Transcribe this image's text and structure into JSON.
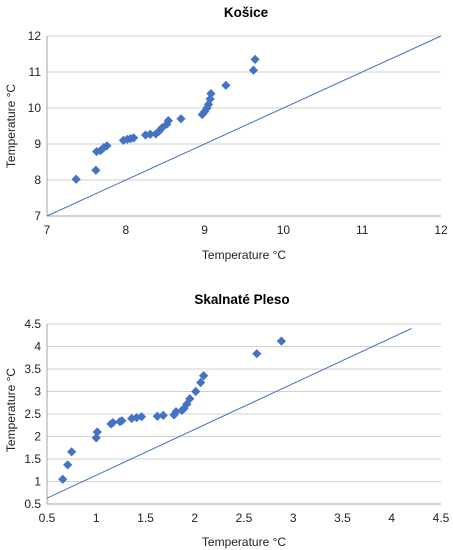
{
  "chart_data": [
    {
      "type": "scatter",
      "title": "Košice",
      "xlabel": "Temperature °C",
      "ylabel": "Temperature °C",
      "xlim": [
        7,
        12
      ],
      "ylim": [
        7,
        12
      ],
      "xticks": [
        "7",
        "8",
        "9",
        "10",
        "11",
        "12"
      ],
      "yticks": [
        "7",
        "8",
        "9",
        "10",
        "11",
        "12"
      ],
      "grid": true,
      "reference_line": {
        "from": [
          7,
          7
        ],
        "to": [
          12,
          12
        ]
      },
      "marker_color": "#4472c4",
      "points": [
        [
          7.37,
          8.02
        ],
        [
          7.62,
          8.27
        ],
        [
          7.63,
          8.79
        ],
        [
          7.68,
          8.82
        ],
        [
          7.72,
          8.9
        ],
        [
          7.76,
          8.95
        ],
        [
          7.97,
          9.1
        ],
        [
          8.02,
          9.13
        ],
        [
          8.06,
          9.15
        ],
        [
          8.1,
          9.17
        ],
        [
          8.25,
          9.25
        ],
        [
          8.31,
          9.27
        ],
        [
          8.38,
          9.28
        ],
        [
          8.42,
          9.35
        ],
        [
          8.46,
          9.45
        ],
        [
          8.52,
          9.55
        ],
        [
          8.54,
          9.65
        ],
        [
          8.7,
          9.7
        ],
        [
          8.97,
          9.82
        ],
        [
          9.0,
          9.9
        ],
        [
          9.03,
          10.0
        ],
        [
          9.05,
          10.1
        ],
        [
          9.07,
          10.25
        ],
        [
          9.08,
          10.4
        ],
        [
          9.27,
          10.63
        ],
        [
          9.62,
          11.05
        ],
        [
          9.64,
          11.35
        ]
      ]
    },
    {
      "type": "scatter",
      "title": "Skalnaté Pleso",
      "xlabel": "Temperature °C",
      "ylabel": "Temperature °C",
      "xlim": [
        0.5,
        4.5
      ],
      "ylim": [
        0.5,
        4.5
      ],
      "xticks": [
        "0.5",
        "1",
        "1.5",
        "2",
        "2.5",
        "3",
        "3.5",
        "4",
        "4.5"
      ],
      "yticks": [
        "0.5",
        "1",
        "1.5",
        "2",
        "2.5",
        "3",
        "3.5",
        "4",
        "4.5"
      ],
      "grid": true,
      "reference_line": {
        "from": [
          0.5,
          0.63
        ],
        "to": [
          4.2,
          4.4
        ]
      },
      "marker_color": "#4472c4",
      "points": [
        [
          0.66,
          1.05
        ],
        [
          0.71,
          1.37
        ],
        [
          0.75,
          1.66
        ],
        [
          1.0,
          1.97
        ],
        [
          1.01,
          2.1
        ],
        [
          1.15,
          2.28
        ],
        [
          1.17,
          2.31
        ],
        [
          1.24,
          2.33
        ],
        [
          1.26,
          2.35
        ],
        [
          1.36,
          2.4
        ],
        [
          1.41,
          2.42
        ],
        [
          1.46,
          2.44
        ],
        [
          1.62,
          2.45
        ],
        [
          1.68,
          2.47
        ],
        [
          1.79,
          2.48
        ],
        [
          1.81,
          2.55
        ],
        [
          1.87,
          2.58
        ],
        [
          1.89,
          2.62
        ],
        [
          1.92,
          2.72
        ],
        [
          1.95,
          2.84
        ],
        [
          2.01,
          3.0
        ],
        [
          2.06,
          3.2
        ],
        [
          2.09,
          3.35
        ],
        [
          2.63,
          3.84
        ],
        [
          2.88,
          4.12
        ]
      ]
    }
  ]
}
